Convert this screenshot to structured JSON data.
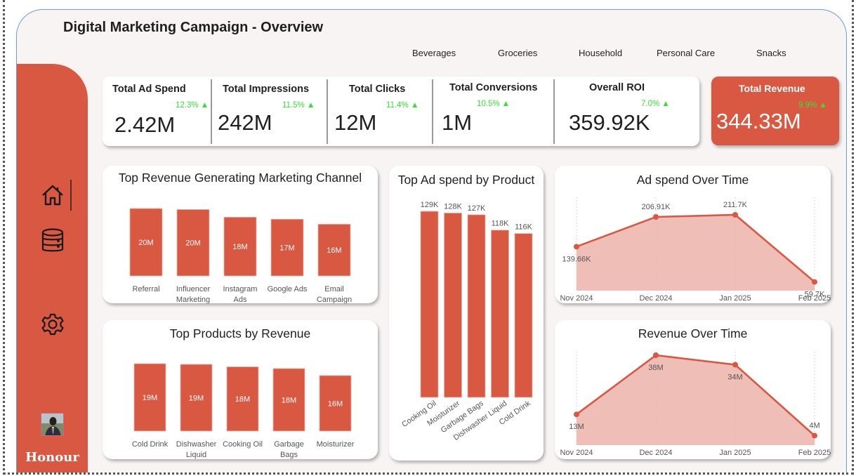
{
  "header": {
    "title": "Digital Marketing Campaign - Overview"
  },
  "slicer": {
    "items": [
      "Beverages",
      "Groceries",
      "Household",
      "Personal Care",
      "Snacks"
    ]
  },
  "sidebar": {
    "nav": [
      {
        "name": "home",
        "icon": "home-icon",
        "active": true
      },
      {
        "name": "data",
        "icon": "database-icon",
        "active": false
      },
      {
        "name": "settings",
        "icon": "gear-icon",
        "active": false
      }
    ],
    "profile_name": "Honour"
  },
  "colors": {
    "accent": "#d95842",
    "area_fill": "#eebbb2",
    "delta_up": "#2ee62e",
    "background": "#f8f4f3"
  },
  "kpis": [
    {
      "label": "Total Ad Spend",
      "value": "2.42M",
      "delta": "12.3% ▲"
    },
    {
      "label": "Total Impressions",
      "value": "242M",
      "delta": "11.5% ▲"
    },
    {
      "label": "Total Clicks",
      "value": "12M",
      "delta": "11.4% ▲"
    },
    {
      "label": "Total Conversions",
      "value": "1M",
      "delta": "10.5% ▲"
    },
    {
      "label": "Overall ROI",
      "value": "359.92K",
      "delta": "7.0% ▲"
    },
    {
      "label": "Total Revenue",
      "value": "344.33M",
      "delta": "9.9% ▲"
    }
  ],
  "chart_data": [
    {
      "id": "channel",
      "type": "bar",
      "title": "Top Revenue Generating Marketing Channel",
      "categories": [
        "Referral",
        "Influencer Marketing",
        "Instagram Ads",
        "Google Ads",
        "Email Campaign"
      ],
      "category_lines": [
        [
          "Referral"
        ],
        [
          "Influencer",
          "Marketing"
        ],
        [
          "Instagram",
          "Ads"
        ],
        [
          "Google Ads"
        ],
        [
          "Email",
          "Campaign"
        ]
      ],
      "values": [
        20.2,
        19.9,
        17.6,
        17.0,
        15.5
      ],
      "labels": [
        "20M",
        "20M",
        "18M",
        "17M",
        "16M"
      ],
      "xlabel": "",
      "ylabel": "",
      "grid": false
    },
    {
      "id": "products",
      "type": "bar",
      "title": "Top Products by Revenue",
      "categories": [
        "Cold Drink",
        "Dishwasher Liquid",
        "Cooking Oil",
        "Garbage Bags",
        "Moisturizer"
      ],
      "category_lines": [
        [
          "Cold Drink"
        ],
        [
          "Dishwasher",
          "Liquid"
        ],
        [
          "Cooking Oil"
        ],
        [
          "Garbage",
          "Bags"
        ],
        [
          "Moisturizer"
        ]
      ],
      "values": [
        19.3,
        19.1,
        18.4,
        17.9,
        15.9
      ],
      "labels": [
        "19M",
        "19M",
        "18M",
        "18M",
        "16M"
      ],
      "xlabel": "",
      "ylabel": "",
      "grid": false
    },
    {
      "id": "adspend",
      "type": "bar",
      "title": "Top Ad spend by Product",
      "categories": [
        "Cooking Oil",
        "Moisturizer",
        "Garbage Bags",
        "Dishwasher Liquid",
        "Cold Drink"
      ],
      "values": [
        129,
        128,
        127,
        118,
        116
      ],
      "labels": [
        "129K",
        "128K",
        "127K",
        "118K",
        "116K"
      ],
      "unit": "K",
      "xlabel": "",
      "ylabel": "",
      "grid": false
    },
    {
      "id": "adspend_time",
      "type": "area",
      "title": "Ad spend Over Time",
      "x": [
        "Nov 2024",
        "Dec 2024",
        "Jan 2025",
        "Feb 2025"
      ],
      "values": [
        139.66,
        206.91,
        211.7,
        59.7
      ],
      "labels": [
        "139.66K",
        "206.91K",
        "211.7K",
        "59.7K"
      ],
      "label_pos": [
        "below",
        "above",
        "above",
        "below"
      ],
      "unit": "K",
      "grid": "vertical-dotted"
    },
    {
      "id": "revenue_time",
      "type": "area",
      "title": "Revenue Over Time",
      "x": [
        "Nov 2024",
        "Dec 2024",
        "Jan 2025",
        "Feb 2025"
      ],
      "values": [
        13,
        38,
        34,
        4
      ],
      "labels": [
        "13M",
        "38M",
        "34M",
        "4M"
      ],
      "label_pos": [
        "below",
        "below",
        "below",
        "above"
      ],
      "unit": "M",
      "grid": "vertical-dotted"
    }
  ]
}
